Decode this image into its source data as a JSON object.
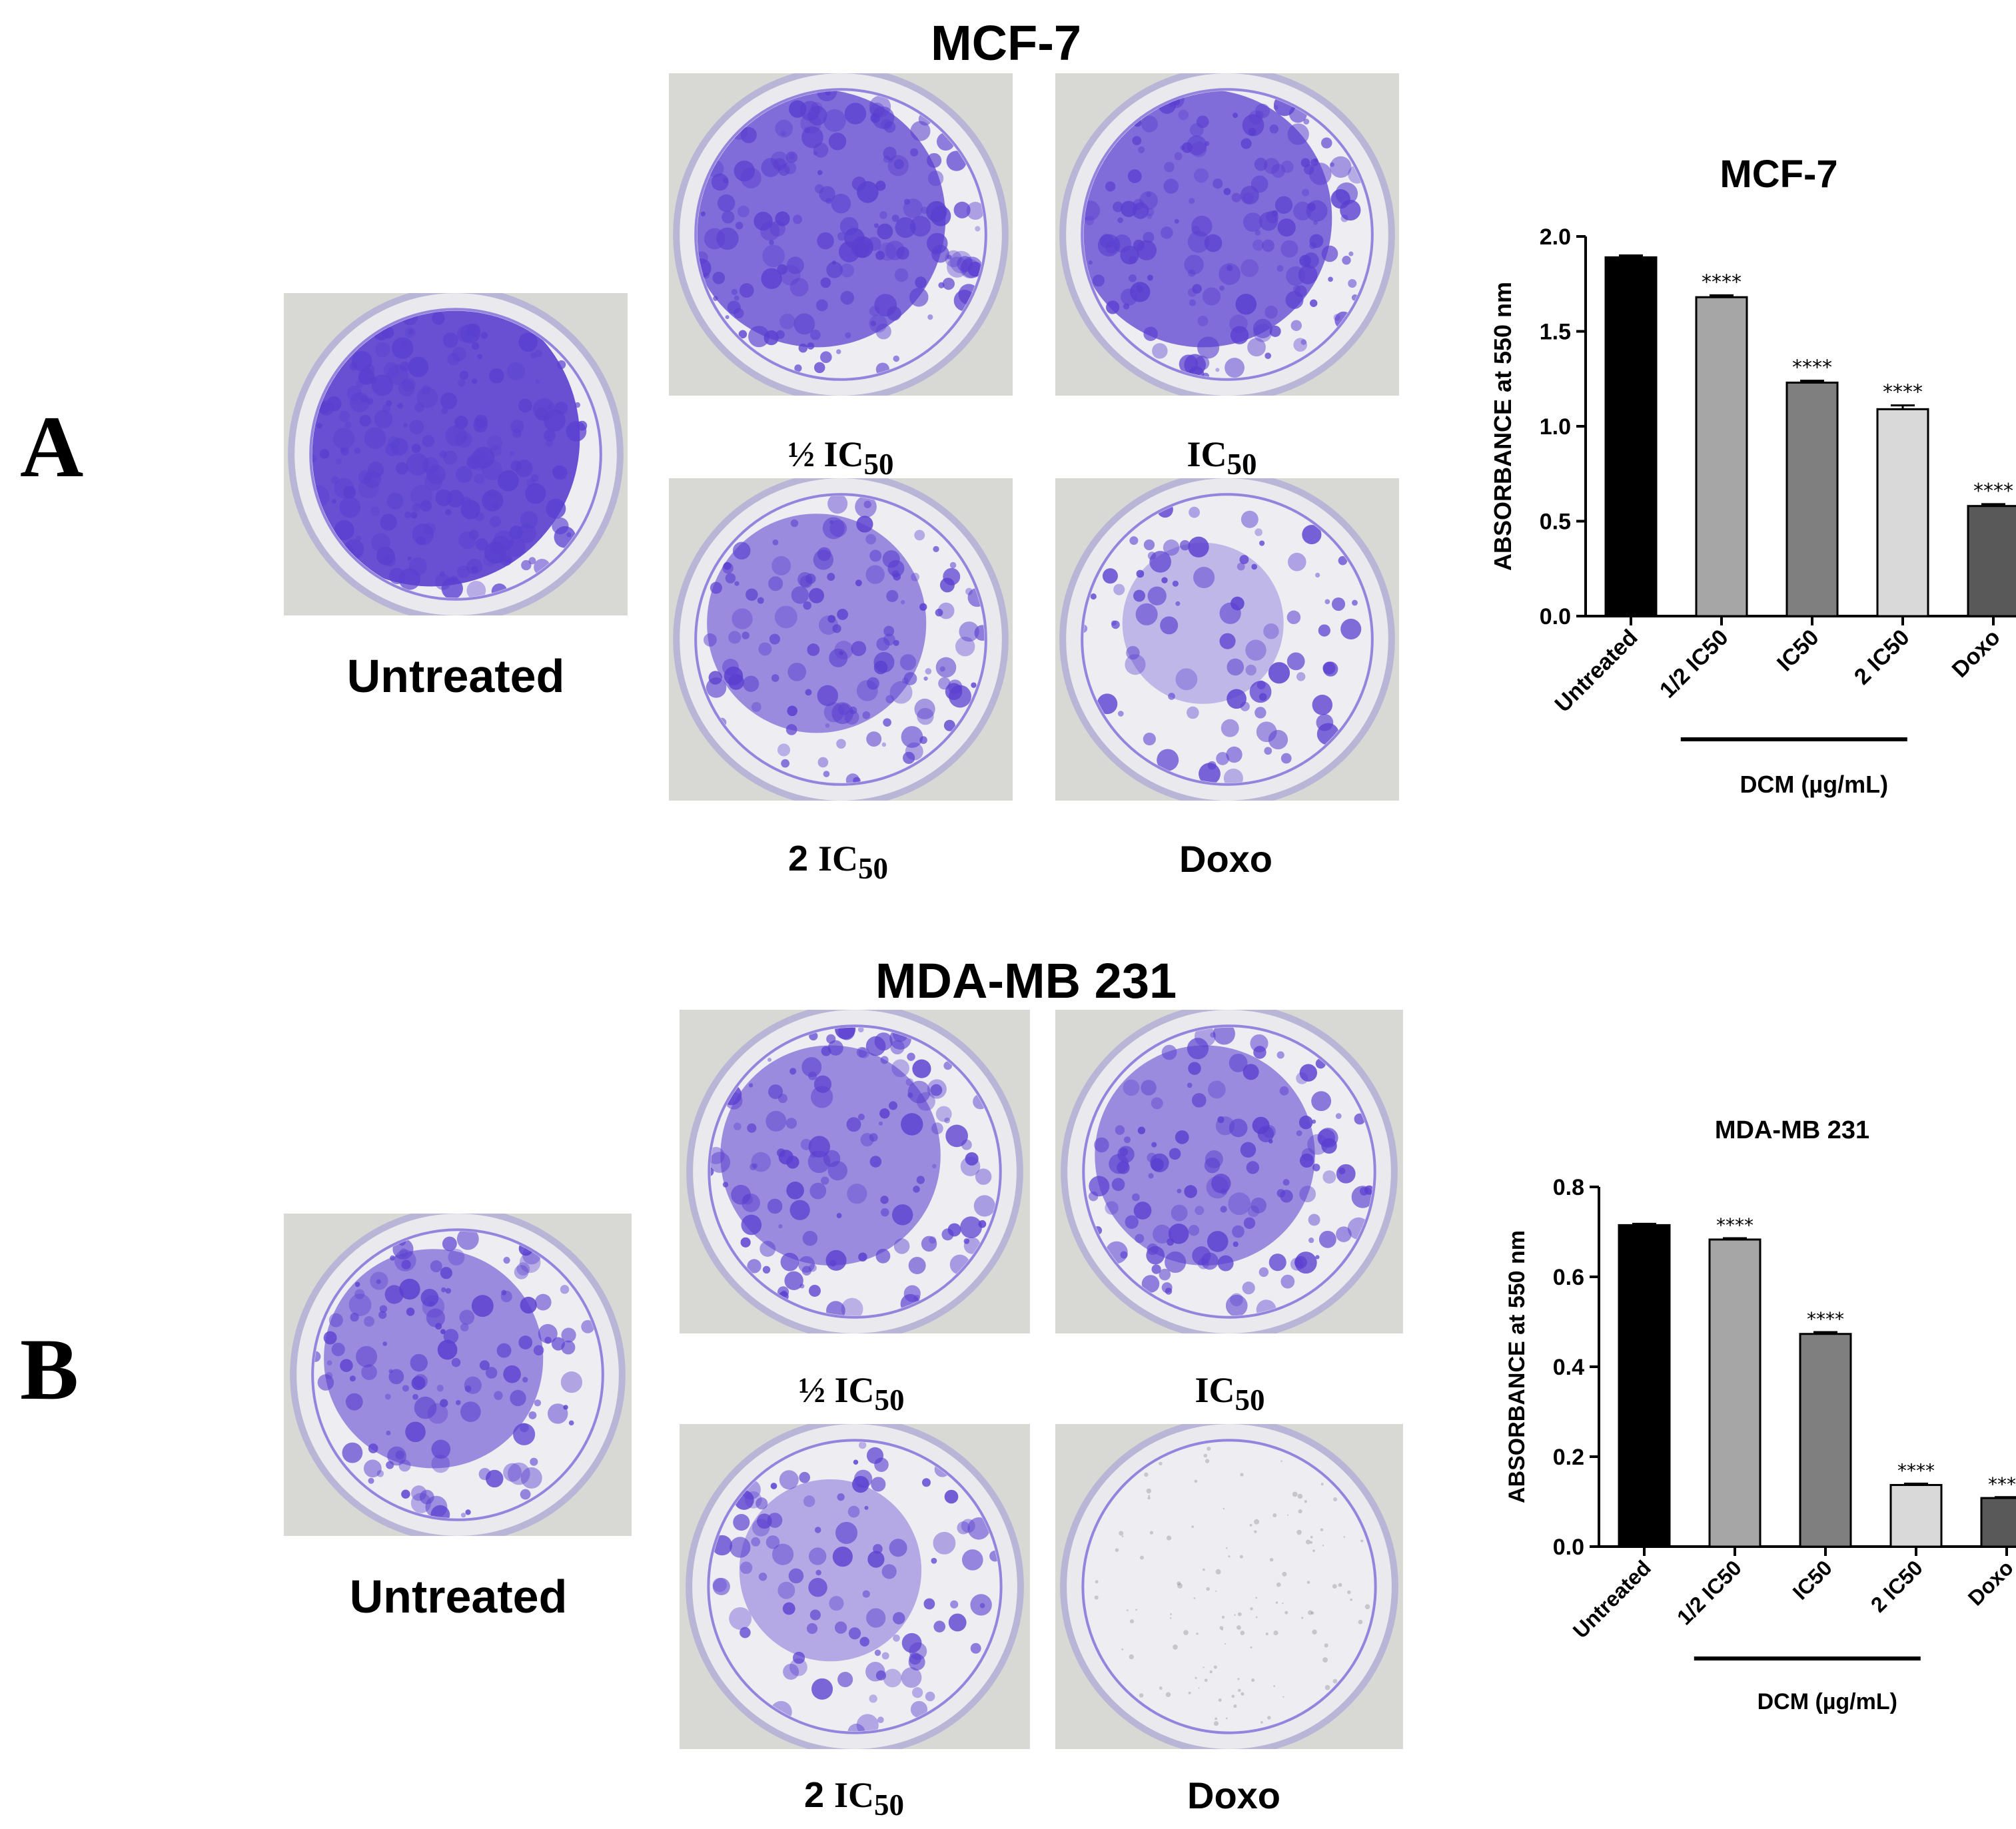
{
  "figure": {
    "panels": [
      {
        "letter": "A",
        "cell_line": "MCF-7",
        "dishes": [
          {
            "id": "untreated",
            "label": "Untreated",
            "stain": "dense"
          },
          {
            "id": "half",
            "label_main": "½ IC",
            "label_sub": "50",
            "stain": "heavy"
          },
          {
            "id": "ic50",
            "label_main": "IC",
            "label_sub": "50",
            "stain": "heavy"
          },
          {
            "id": "two",
            "label_num": "2 ",
            "label_main": "IC",
            "label_sub": "50",
            "stain": "medium"
          },
          {
            "id": "doxo",
            "label": "Doxo",
            "stain": "sparse"
          }
        ]
      },
      {
        "letter": "B",
        "cell_line": "MDA-MB 231",
        "dishes": [
          {
            "id": "untreated",
            "label": "Untreated",
            "stain": "medium"
          },
          {
            "id": "half",
            "label_main": "½ IC",
            "label_sub": "50",
            "stain": "medium"
          },
          {
            "id": "ic50",
            "label_main": "IC",
            "label_sub": "50",
            "stain": "medium"
          },
          {
            "id": "two",
            "label_num": "2 ",
            "label_main": "IC",
            "label_sub": "50",
            "stain": "light"
          },
          {
            "id": "doxo",
            "label": "Doxo",
            "stain": "none"
          }
        ]
      }
    ]
  },
  "chart_data": [
    {
      "type": "bar",
      "title": "MCF-7",
      "ylabel": "ABSORBANCE at 550 nm",
      "xlabel": "DCM (µg/mL)",
      "categories": [
        "Untreated",
        "1/2 IC50",
        "IC50",
        "2 IC50",
        "Doxo"
      ],
      "values": [
        1.89,
        1.68,
        1.23,
        1.09,
        0.58
      ],
      "errors": [
        0.01,
        0.01,
        0.01,
        0.02,
        0.01
      ],
      "significance": [
        "",
        "****",
        "****",
        "****",
        "****"
      ],
      "bar_colors": [
        "#000000",
        "#a6a6a6",
        "#7f7f7f",
        "#d9d9d9",
        "#595959"
      ],
      "ylim": [
        0,
        2.0
      ],
      "yticks": [
        "0.0",
        "0.5",
        "1.0",
        "1.5",
        "2.0"
      ],
      "bracket_label": "DCM (µg/mL)",
      "bracket_span": [
        "1/2 IC50",
        "2 IC50"
      ]
    },
    {
      "type": "bar",
      "title": "MDA-MB 231",
      "ylabel": "ABSORBANCE at 550 nm",
      "xlabel": "DCM (µg/mL)",
      "categories": [
        "Untreated",
        "1/2 IC50",
        "IC50",
        "2 IC50",
        "Doxo"
      ],
      "values": [
        0.715,
        0.683,
        0.473,
        0.137,
        0.108
      ],
      "errors": [
        0.003,
        0.003,
        0.004,
        0.003,
        0.002
      ],
      "significance": [
        "",
        "****",
        "****",
        "****",
        "****"
      ],
      "bar_colors": [
        "#000000",
        "#a6a6a6",
        "#7f7f7f",
        "#d9d9d9",
        "#595959"
      ],
      "ylim": [
        0,
        0.8
      ],
      "yticks": [
        "0.0",
        "0.2",
        "0.4",
        "0.6",
        "0.8"
      ],
      "bracket_label": "DCM (µg/mL)",
      "bracket_span": [
        "1/2 IC50",
        "2 IC50"
      ]
    }
  ],
  "colors": {
    "crystal_violet": "#5a3fd0",
    "dish_background": "#dcdcd8"
  }
}
